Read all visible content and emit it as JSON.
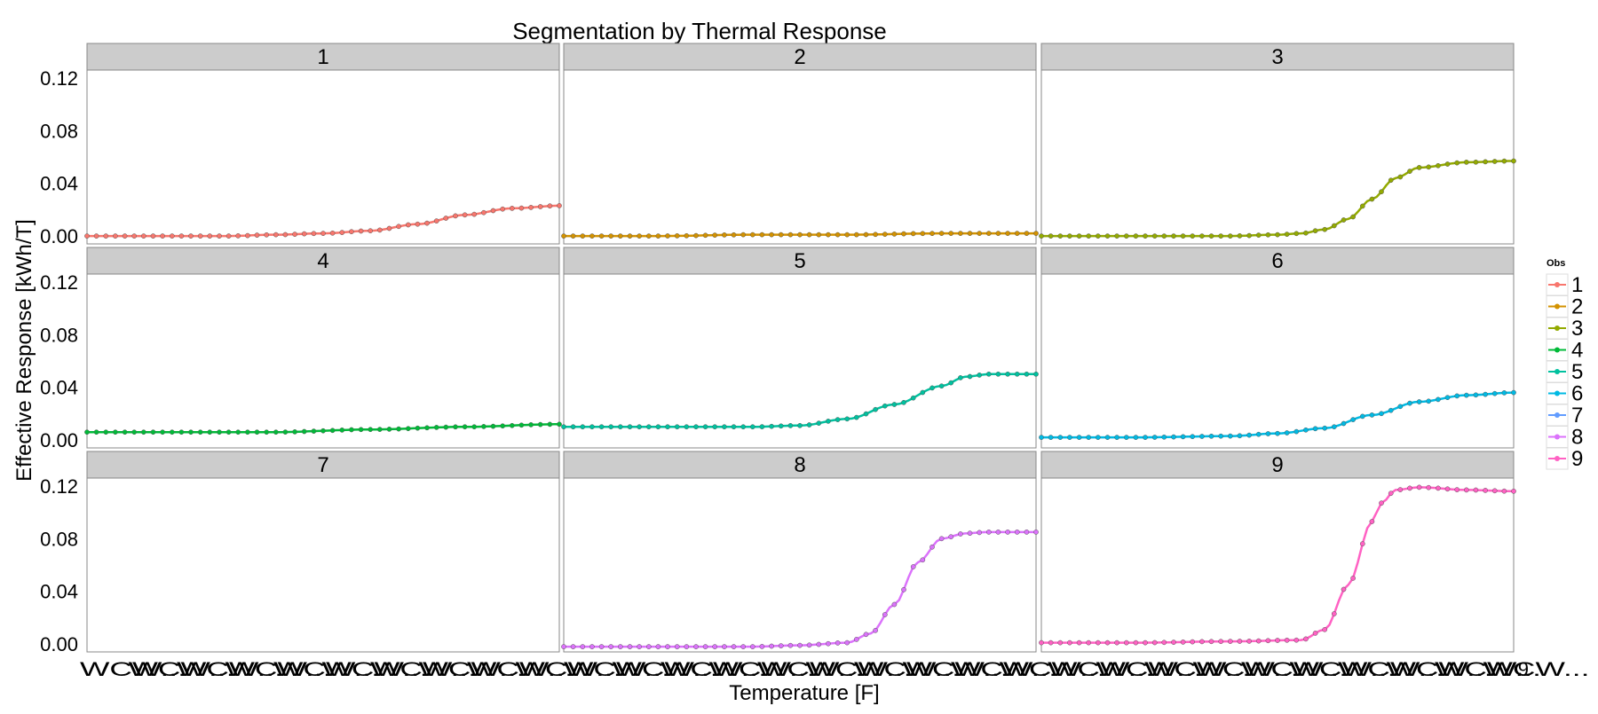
{
  "chart_data": {
    "type": "line",
    "title": "Segmentation by Thermal Response",
    "xlabel": "Temperature [F]",
    "ylabel": "Effective Response [kWh/T]",
    "ylim": [
      -0.006,
      0.126
    ],
    "y_ticks": [
      "0.00",
      "0.04",
      "0.08",
      "0.12"
    ],
    "x_ticks_note": "WCW...",
    "x_ticks_end": "9",
    "grid": false,
    "legend": {
      "title": "Obs",
      "placement": "right",
      "entries": [
        "1",
        "2",
        "3",
        "4",
        "5",
        "6",
        "7",
        "8",
        "9"
      ]
    },
    "panel_layout": {
      "rows": 3,
      "cols": 3
    },
    "panels": [
      {
        "label": "1",
        "color": "#F8766D",
        "x": [
          0,
          0.1,
          0.2,
          0.3,
          0.4,
          0.5,
          0.6,
          0.7,
          0.8,
          0.9,
          1.0
        ],
        "y": [
          0.0,
          0.0,
          0.0,
          0.0,
          0.001,
          0.002,
          0.004,
          0.009,
          0.016,
          0.021,
          0.023
        ]
      },
      {
        "label": "2",
        "color": "#D39200",
        "x": [
          0,
          0.2,
          0.4,
          0.6,
          0.8,
          1.0
        ],
        "y": [
          0.0,
          0.0,
          0.001,
          0.001,
          0.002,
          0.002
        ]
      },
      {
        "label": "3",
        "color": "#93AA00",
        "x": [
          0,
          0.2,
          0.4,
          0.5,
          0.55,
          0.6,
          0.65,
          0.7,
          0.75,
          0.8,
          0.9,
          1.0
        ],
        "y": [
          0.0,
          0.0,
          0.0,
          0.001,
          0.002,
          0.005,
          0.013,
          0.028,
          0.044,
          0.052,
          0.056,
          0.057
        ]
      },
      {
        "label": "4",
        "color": "#00BA38",
        "x": [
          0,
          0.2,
          0.4,
          0.6,
          0.8,
          1.0
        ],
        "y": [
          0.006,
          0.006,
          0.006,
          0.008,
          0.01,
          0.012
        ]
      },
      {
        "label": "5",
        "color": "#00C19F",
        "x": [
          0,
          0.2,
          0.4,
          0.5,
          0.6,
          0.7,
          0.8,
          0.85,
          0.9,
          1.0
        ],
        "y": [
          0.01,
          0.01,
          0.01,
          0.011,
          0.016,
          0.027,
          0.041,
          0.048,
          0.05,
          0.05
        ]
      },
      {
        "label": "6",
        "color": "#00B9E3",
        "x": [
          0,
          0.2,
          0.4,
          0.5,
          0.6,
          0.7,
          0.8,
          0.9,
          1.0
        ],
        "y": [
          0.002,
          0.002,
          0.003,
          0.005,
          0.009,
          0.019,
          0.029,
          0.034,
          0.036
        ]
      },
      {
        "label": "7",
        "color": "#619CFF",
        "x": [],
        "y": []
      },
      {
        "label": "8",
        "color": "#DB72FB",
        "x": [
          0,
          0.2,
          0.4,
          0.5,
          0.6,
          0.65,
          0.7,
          0.75,
          0.8,
          0.85,
          0.9,
          1.0
        ],
        "y": [
          -0.002,
          -0.002,
          -0.002,
          -0.001,
          0.001,
          0.008,
          0.03,
          0.062,
          0.08,
          0.084,
          0.085,
          0.085
        ]
      },
      {
        "label": "9",
        "color": "#FF61C3",
        "x": [
          0,
          0.2,
          0.4,
          0.55,
          0.6,
          0.65,
          0.7,
          0.72,
          0.75,
          0.8,
          0.9,
          1.0
        ],
        "y": [
          0.001,
          0.001,
          0.002,
          0.003,
          0.011,
          0.045,
          0.093,
          0.107,
          0.117,
          0.119,
          0.117,
          0.116
        ]
      }
    ]
  }
}
